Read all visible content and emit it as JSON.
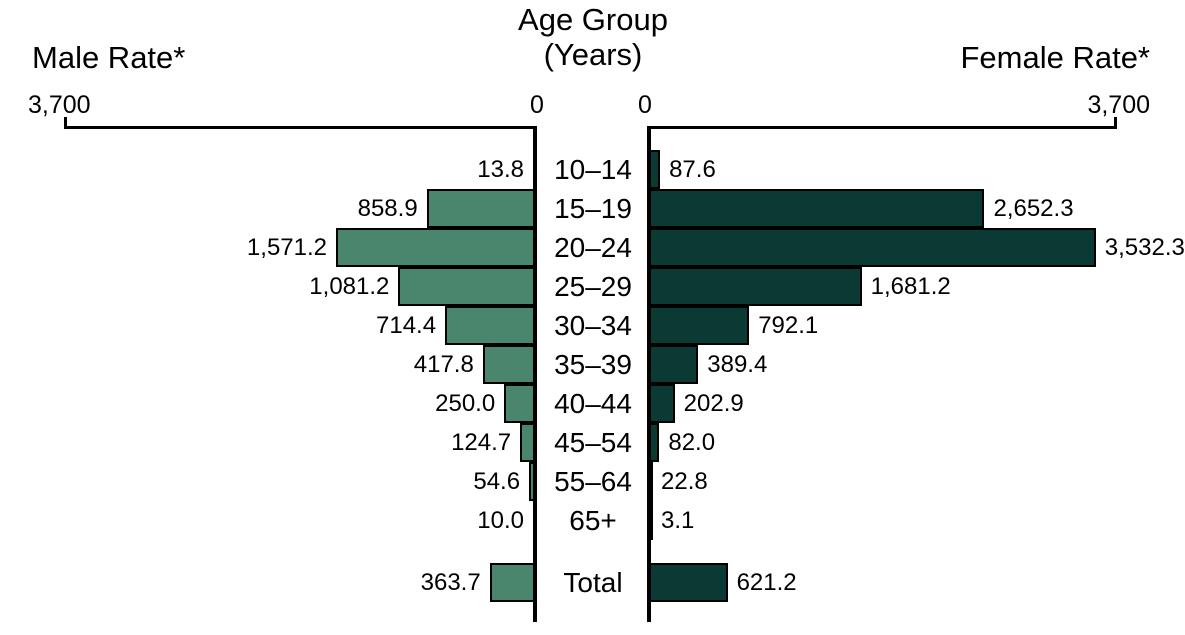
{
  "header": {
    "male_label": "Male Rate*",
    "age_group_line1": "Age Group",
    "age_group_line2": "(Years)",
    "female_label": "Female Rate*"
  },
  "axis": {
    "male_max_label": "3,700",
    "male_zero_label": "0",
    "female_zero_label": "0",
    "female_max_label": "3,700",
    "max_value": 3700
  },
  "colors": {
    "male_bar": "#4A856E",
    "female_bar": "#0B3A35",
    "bar_border": "#000000",
    "text": "#000000",
    "background": "#FFFFFF"
  },
  "chart_data": {
    "type": "bar",
    "subtype": "population-pyramid",
    "title": "Age Group (Years)",
    "left_axis_label": "Male Rate*",
    "right_axis_label": "Female Rate*",
    "axis_range": [
      0,
      3700
    ],
    "grid": false,
    "legend_position": "none",
    "value_labels": "outside-end",
    "categories": [
      "10–14",
      "15–19",
      "20–24",
      "25–29",
      "30–34",
      "35–39",
      "40–44",
      "45–54",
      "55–64",
      "65+",
      "Total"
    ],
    "series": [
      {
        "name": "Male Rate*",
        "side": "left",
        "values": [
          13.8,
          858.9,
          1571.2,
          1081.2,
          714.4,
          417.8,
          250.0,
          124.7,
          54.6,
          10.0,
          363.7
        ],
        "labels": [
          "13.8",
          "858.9",
          "1,571.2",
          "1,081.2",
          "714.4",
          "417.8",
          "250.0",
          "124.7",
          "54.6",
          "10.0",
          "363.7"
        ]
      },
      {
        "name": "Female Rate*",
        "side": "right",
        "values": [
          87.6,
          2652.3,
          3532.3,
          1681.2,
          792.1,
          389.4,
          202.9,
          82.0,
          22.8,
          3.1,
          621.2
        ],
        "labels": [
          "87.6",
          "2,652.3",
          "3,532.3",
          "1,681.2",
          "792.1",
          "389.4",
          "202.9",
          "82.0",
          "22.8",
          "3.1",
          "621.2"
        ]
      }
    ]
  }
}
